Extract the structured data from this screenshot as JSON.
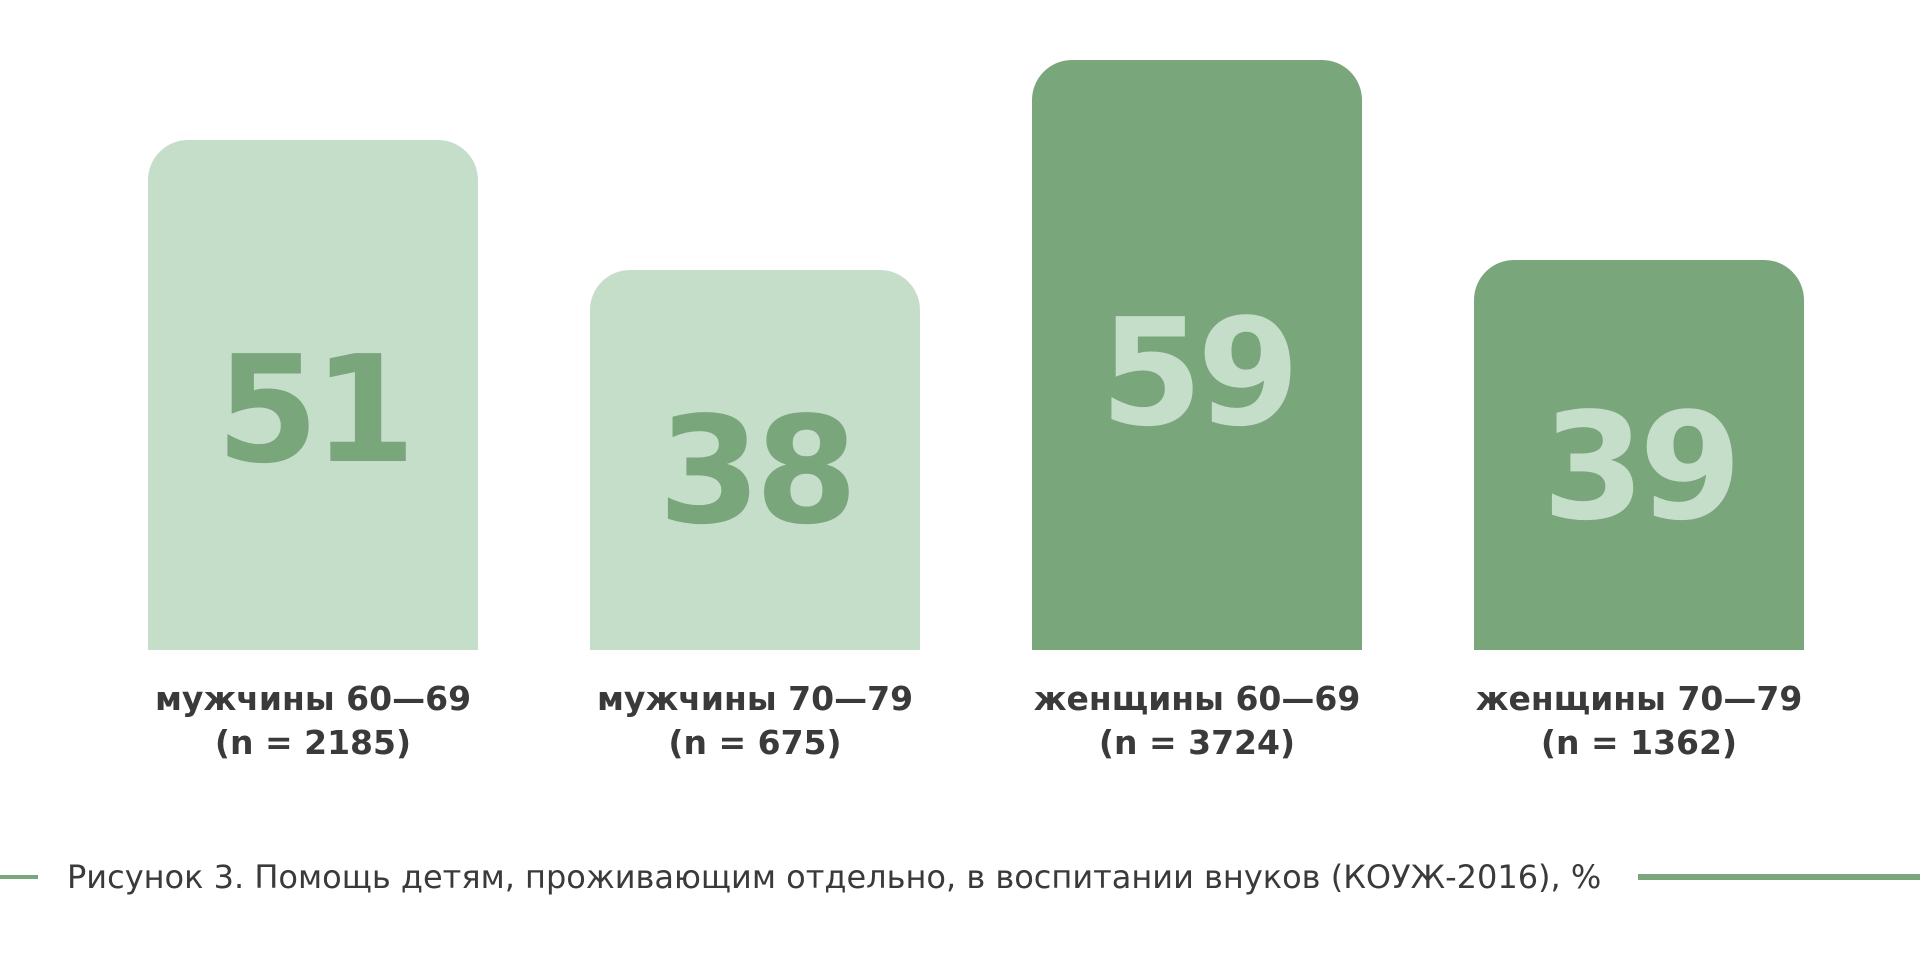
{
  "chart_data": {
    "type": "bar",
    "title": "",
    "xlabel": "",
    "ylabel": "",
    "ylim": [
      0,
      59
    ],
    "grid": false,
    "categories": [
      {
        "name": "мужчины 60—69",
        "n_label": "(n = 2185)"
      },
      {
        "name": "мужчины 70—79",
        "n_label": "(n = 675)"
      },
      {
        "name": "женщины 60—69",
        "n_label": "(n = 3724)"
      },
      {
        "name": "женщины 70—79",
        "n_label": "(n = 1362)"
      }
    ],
    "values": [
      51,
      38,
      59,
      39
    ],
    "value_labels": [
      "51",
      "38",
      "59",
      "39"
    ],
    "bar_colors": [
      "#c5dec9",
      "#c5dec9",
      "#79a67b",
      "#79a67b"
    ],
    "value_label_colors": [
      "#79a67b",
      "#79a67b",
      "#c5dec9",
      "#c5dec9"
    ]
  },
  "caption": {
    "text": "Рисунок 3. Помощь детям, проживающим отдельно, в воспитании внуков (КОУЖ-2016), %",
    "line_color": "#79a67b"
  }
}
